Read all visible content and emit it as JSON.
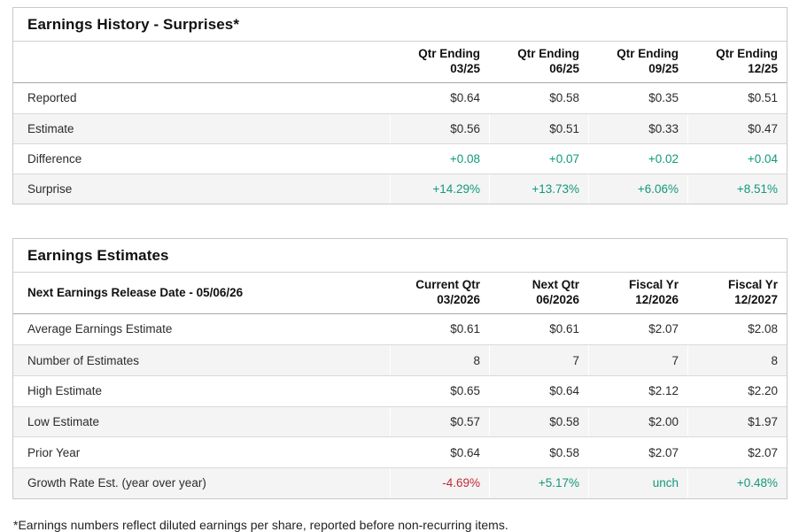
{
  "colors": {
    "positive_green": "#11997b",
    "negative_red": "#c2293a",
    "row_stripe": "#f4f4f4",
    "table_border": "#c9c9c9"
  },
  "history": {
    "title": "Earnings History - Surprises*",
    "columns": [
      {
        "line1": "Qtr Ending",
        "line2": "03/25"
      },
      {
        "line1": "Qtr Ending",
        "line2": "06/25"
      },
      {
        "line1": "Qtr Ending",
        "line2": "09/25"
      },
      {
        "line1": "Qtr Ending",
        "line2": "12/25"
      }
    ],
    "rows": [
      {
        "label": "Reported",
        "values": [
          "$0.64",
          "$0.58",
          "$0.35",
          "$0.51"
        ]
      },
      {
        "label": "Estimate",
        "values": [
          "$0.56",
          "$0.51",
          "$0.33",
          "$0.47"
        ]
      },
      {
        "label": "Difference",
        "values": [
          "+0.08",
          "+0.07",
          "+0.02",
          "+0.04"
        ]
      },
      {
        "label": "Surprise",
        "values": [
          "+14.29%",
          "+13.73%",
          "+6.06%",
          "+8.51%"
        ]
      }
    ]
  },
  "estimates": {
    "title": "Earnings Estimates",
    "header_label": "Next Earnings Release Date - 05/06/26",
    "columns": [
      {
        "line1": "Current Qtr",
        "line2": "03/2026"
      },
      {
        "line1": "Next Qtr",
        "line2": "06/2026"
      },
      {
        "line1": "Fiscal Yr",
        "line2": "12/2026"
      },
      {
        "line1": "Fiscal Yr",
        "line2": "12/2027"
      }
    ],
    "rows": [
      {
        "label": "Average Earnings Estimate",
        "values": [
          "$0.61",
          "$0.61",
          "$2.07",
          "$2.08"
        ]
      },
      {
        "label": "Number of Estimates",
        "values": [
          "8",
          "7",
          "7",
          "8"
        ]
      },
      {
        "label": "High Estimate",
        "values": [
          "$0.65",
          "$0.64",
          "$2.12",
          "$2.20"
        ]
      },
      {
        "label": "Low Estimate",
        "values": [
          "$0.57",
          "$0.58",
          "$2.00",
          "$1.97"
        ]
      },
      {
        "label": "Prior Year",
        "values": [
          "$0.64",
          "$0.58",
          "$2.07",
          "$2.07"
        ]
      },
      {
        "label": "Growth Rate Est. (year over year)",
        "values": [
          "-4.69%",
          "+5.17%",
          "unch",
          "+0.48%"
        ]
      }
    ]
  },
  "footnote": "*Earnings numbers reflect diluted earnings per share, reported before non-recurring items."
}
